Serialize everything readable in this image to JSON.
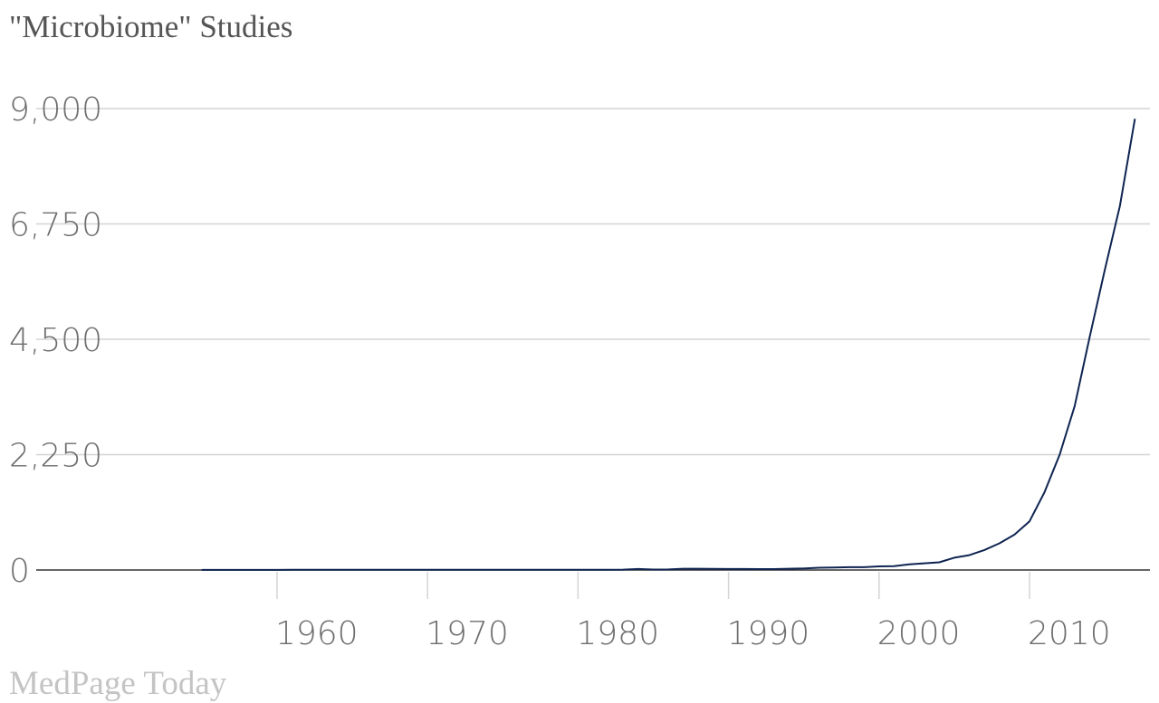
{
  "title": "\"Microbiome\" Studies",
  "source": "MedPage Today",
  "colors": {
    "line": "#0f2451",
    "grid": "#d4d4d4",
    "axis": "#333333",
    "text": "#6e6e6e"
  },
  "chart_data": {
    "type": "line",
    "title": "\"Microbiome\" Studies",
    "xlabel": "",
    "ylabel": "",
    "ylim": [
      0,
      9000
    ],
    "xlim": [
      1944,
      2018
    ],
    "y_ticks": [
      0,
      2250,
      4500,
      6750,
      9000
    ],
    "y_tick_labels": [
      "0",
      "2,250",
      "4,500",
      "6,750",
      "9,000"
    ],
    "x_ticks": [
      1960,
      1970,
      1980,
      1990,
      2000,
      2010
    ],
    "x_tick_labels": [
      "1960",
      "1970",
      "1980",
      "1990",
      "2000",
      "2010"
    ],
    "grid": true,
    "series": [
      {
        "x": [
          1955,
          1956,
          1957,
          1958,
          1959,
          1960,
          1961,
          1962,
          1963,
          1964,
          1965,
          1966,
          1967,
          1968,
          1969,
          1970,
          1971,
          1972,
          1973,
          1974,
          1975,
          1976,
          1977,
          1978,
          1979,
          1980,
          1981,
          1982,
          1983,
          1984,
          1985,
          1986,
          1987,
          1988,
          1989,
          1990,
          1991,
          1992,
          1993,
          1994,
          1995,
          1996,
          1997,
          1998,
          1999,
          2000,
          2001,
          2002,
          2003,
          2004,
          2005,
          2006,
          2007,
          2008,
          2009,
          2010,
          2011,
          2012,
          2013,
          2014,
          2015,
          2016,
          2017
        ],
        "values": [
          2,
          2,
          2,
          2,
          2,
          2,
          3,
          3,
          3,
          3,
          3,
          3,
          3,
          3,
          3,
          4,
          4,
          4,
          4,
          4,
          5,
          5,
          5,
          6,
          6,
          6,
          6,
          6,
          7,
          20,
          8,
          10,
          25,
          25,
          22,
          20,
          20,
          18,
          18,
          25,
          30,
          45,
          50,
          55,
          55,
          70,
          75,
          110,
          130,
          150,
          240,
          290,
          390,
          520,
          690,
          950,
          1520,
          2250,
          3200,
          4550,
          5850,
          7100,
          8800
        ]
      }
    ]
  }
}
